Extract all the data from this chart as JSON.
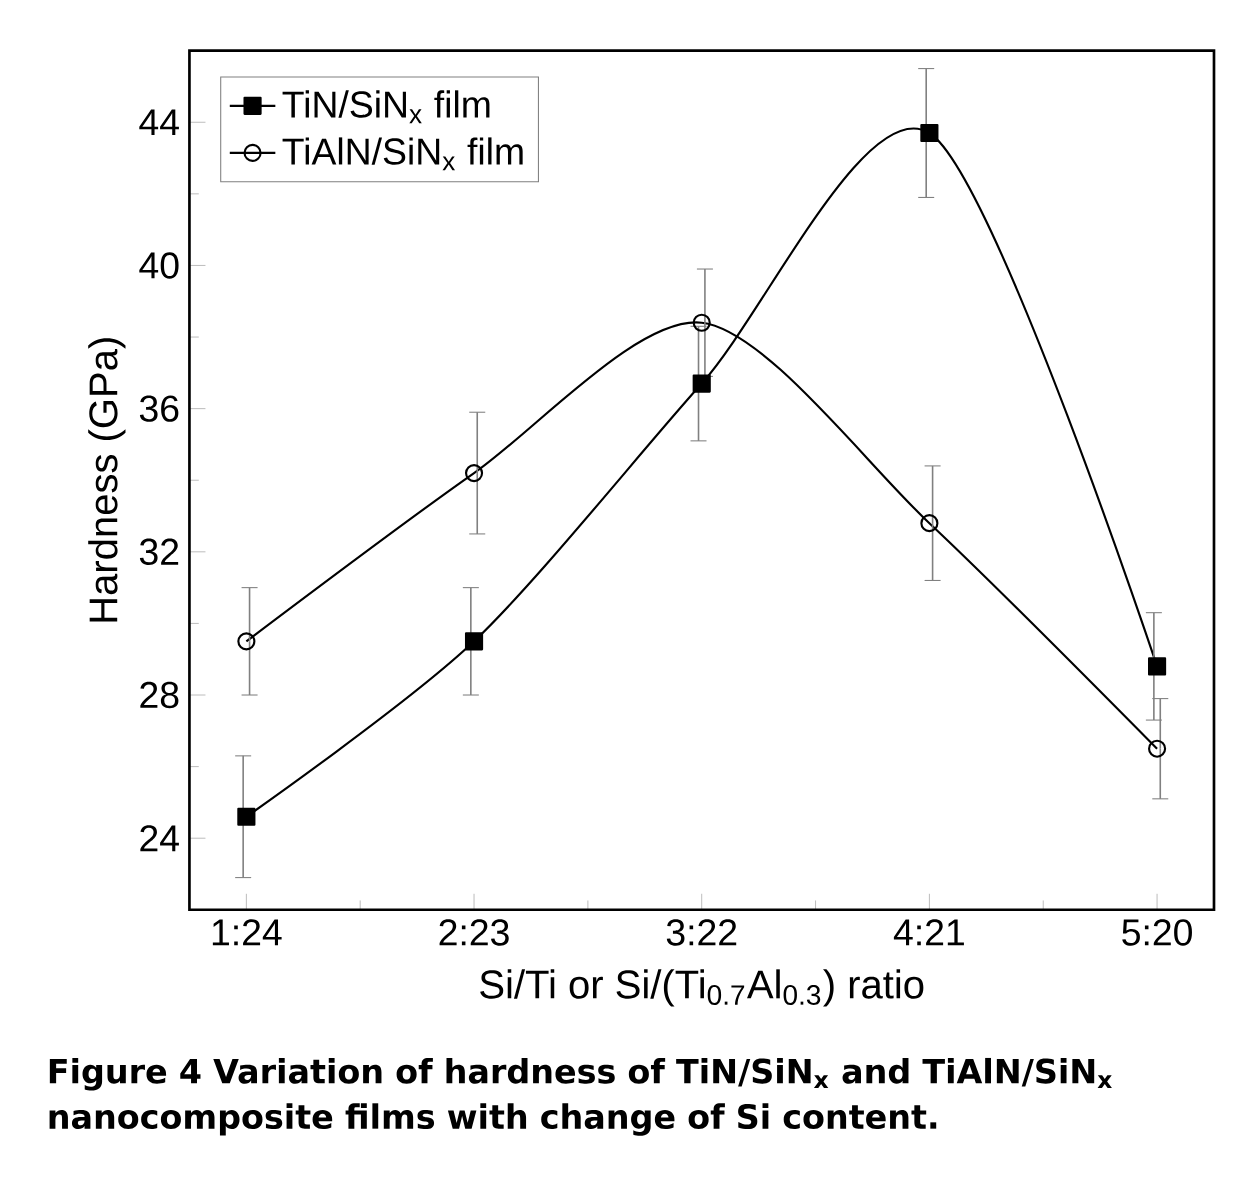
{
  "chart_data": {
    "type": "line",
    "xlabel": "Si/Ti or Si/(Ti$_{0.7}$Al$_{0.3}$) ratio",
    "ylabel": "Hardness (GPa)",
    "categories": [
      "1:24",
      "2:23",
      "3:22",
      "4:21",
      "5:20"
    ],
    "series": [
      {
        "name": "TiN/SiN$_{x}$ film",
        "color": "#000000",
        "marker": "square",
        "values": [
          24.6,
          29.5,
          36.7,
          43.7,
          28.8
        ],
        "errors": [
          1.7,
          1.5,
          1.6,
          1.8,
          1.5
        ]
      },
      {
        "name": "TiAlN/SiN$_{x}$ film",
        "color": "#000000",
        "marker": "circle",
        "values": [
          29.5,
          34.2,
          38.4,
          32.8,
          26.5
        ],
        "errors": [
          1.5,
          1.7,
          1.5,
          1.6,
          1.4
        ]
      }
    ],
    "ylim": [
      22,
      46
    ],
    "yticks": [
      24,
      28,
      32,
      36,
      40,
      44
    ],
    "legend": "top left",
    "grid": false,
    "line_style": "solid",
    "annotations": [
      "**Figure 4** Variation of hardness of TiN/SiN$_{x}$ and TiAlN/SiN$_{x}$ nanocomposite films with change of Si content."
    ]
  }
}
